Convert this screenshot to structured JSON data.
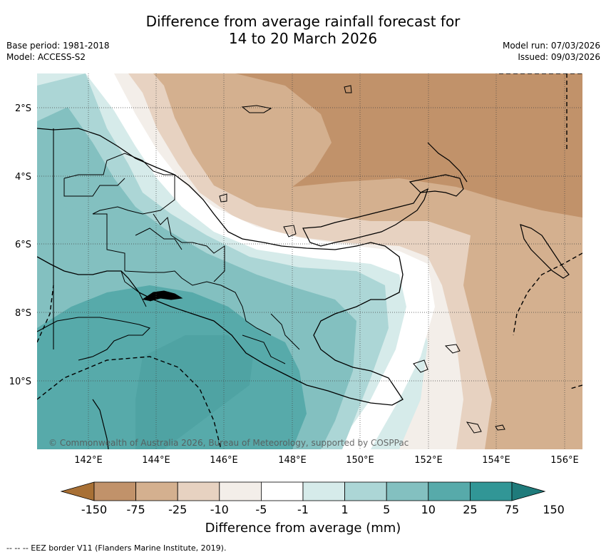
{
  "title": {
    "line1": "Difference from average rainfall forecast for",
    "line2": "14 to 20 March 2026"
  },
  "meta": {
    "base_period": "Base period: 1981-2018",
    "model": "Model: ACCESS-S2",
    "model_run": "Model run: 07/03/2026",
    "issued": "Issued: 09/03/2026"
  },
  "map": {
    "lon_ticks": [
      "142°E",
      "144°E",
      "146°E",
      "148°E",
      "150°E",
      "152°E",
      "154°E",
      "156°E"
    ],
    "lat_ticks": [
      "2°S",
      "4°S",
      "6°S",
      "8°S",
      "10°S"
    ],
    "copyright": "© Commonwealth of Australia 2026, Bureau of Meteorology, supported by COSPPac"
  },
  "colorbar": {
    "tick_labels": [
      "-150",
      "-75",
      "-25",
      "-10",
      "-5",
      "-1",
      "1",
      "5",
      "10",
      "25",
      "75",
      "150"
    ],
    "colors": [
      "#a87035",
      "#c1926a",
      "#d4b08f",
      "#e7d2c1",
      "#f3eee9",
      "#ffffff",
      "#d6ebea",
      "#acd6d6",
      "#83c0c0",
      "#57aaaa",
      "#319696",
      "#1f7b7b"
    ],
    "label": "Difference from average (mm)"
  },
  "footer": {
    "eez_note": "--  --  -- EEZ border V11 (Flanders Marine Institute, 2019)."
  }
}
